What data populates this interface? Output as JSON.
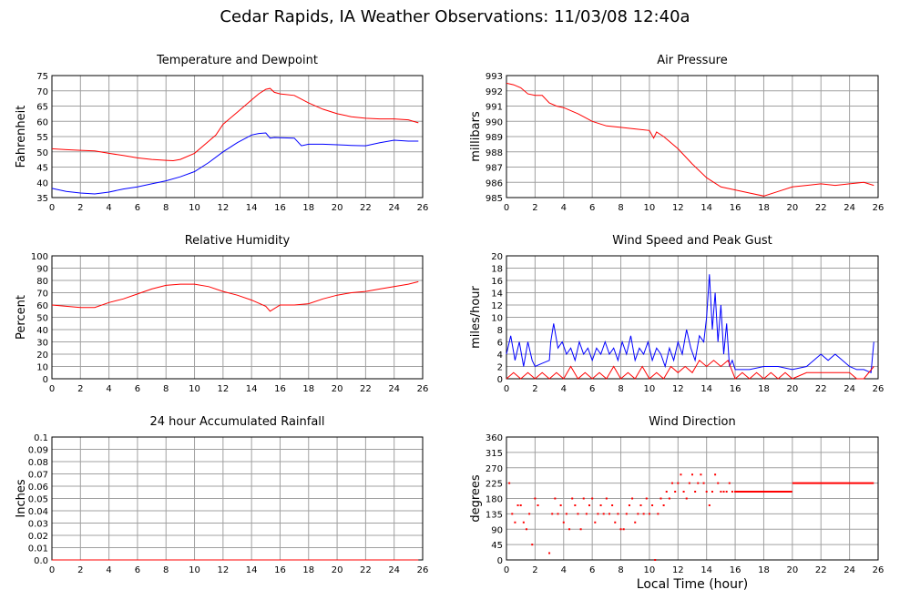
{
  "title": "Cedar Rapids, IA Weather Observations: 11/03/08 12:40a",
  "x_axis_label": "Local Time (hour)",
  "colors": {
    "red": "#ff0000",
    "blue": "#0000ff",
    "grid": "#a0a0a0"
  },
  "chart_data": [
    {
      "type": "line",
      "title": "Temperature and Dewpoint",
      "ylabel": "Fahrenheit",
      "xlim": [
        0,
        26
      ],
      "ylim": [
        35,
        75
      ],
      "xticks": [
        0,
        2,
        4,
        6,
        8,
        10,
        12,
        14,
        16,
        18,
        20,
        22,
        24,
        26
      ],
      "yticks": [
        35,
        40,
        45,
        50,
        55,
        60,
        65,
        70,
        75
      ],
      "series": [
        {
          "color": "#ff0000",
          "x": [
            0,
            1,
            2,
            3,
            4,
            5,
            6,
            7,
            8,
            8.5,
            9,
            10,
            11,
            11.5,
            12,
            13,
            14,
            14.5,
            15,
            15.3,
            15.6,
            16,
            17,
            18,
            19,
            20,
            21,
            22,
            23,
            24,
            25,
            25.7
          ],
          "y": [
            51,
            50.7,
            50.5,
            50.3,
            49.5,
            48.8,
            48,
            47.5,
            47.2,
            47.1,
            47.5,
            49.5,
            53.5,
            55.5,
            59,
            63,
            67,
            69,
            70.5,
            70.8,
            69.5,
            69,
            68.5,
            66,
            64,
            62.5,
            61.5,
            61,
            60.8,
            60.8,
            60.5,
            59.5
          ]
        },
        {
          "color": "#0000ff",
          "x": [
            0,
            1,
            2,
            3,
            4,
            5,
            6,
            7,
            8,
            9,
            10,
            11,
            12,
            13,
            14,
            14.5,
            15,
            15.3,
            15.6,
            16,
            17,
            17.5,
            18,
            19,
            20,
            21,
            22,
            23,
            24,
            25,
            25.7
          ],
          "y": [
            38,
            37,
            36.5,
            36.2,
            36.8,
            37.8,
            38.5,
            39.5,
            40.5,
            41.8,
            43.5,
            46.5,
            50,
            53,
            55.5,
            56,
            56.2,
            54.5,
            54.7,
            54.6,
            54.5,
            52,
            52.5,
            52.5,
            52.3,
            52.1,
            52,
            53,
            53.8,
            53.5,
            53.5
          ]
        }
      ]
    },
    {
      "type": "line",
      "title": "Air Pressure",
      "ylabel": "millibars",
      "xlim": [
        0,
        26
      ],
      "ylim": [
        985,
        993
      ],
      "xticks": [
        0,
        2,
        4,
        6,
        8,
        10,
        12,
        14,
        16,
        18,
        20,
        22,
        24,
        26
      ],
      "yticks": [
        985,
        986,
        987,
        988,
        989,
        990,
        991,
        992,
        993
      ],
      "series": [
        {
          "color": "#ff0000",
          "x": [
            0,
            0.5,
            1,
            1.5,
            2,
            2.5,
            3,
            3.5,
            4,
            5,
            6,
            7,
            8,
            9,
            10,
            10.3,
            10.5,
            11,
            12,
            13,
            14,
            15,
            16,
            17,
            18,
            19,
            20,
            21,
            22,
            23,
            24,
            25,
            25.7
          ],
          "y": [
            992.5,
            992.4,
            992.2,
            991.8,
            991.7,
            991.7,
            991.2,
            991.0,
            990.9,
            990.5,
            990.0,
            989.7,
            989.6,
            989.5,
            989.4,
            988.9,
            989.3,
            989.0,
            988.2,
            987.2,
            986.3,
            985.7,
            985.5,
            985.3,
            985.1,
            985.4,
            985.7,
            985.8,
            985.9,
            985.8,
            985.9,
            986.0,
            985.8
          ]
        }
      ]
    },
    {
      "type": "line",
      "title": "Relative Humidity",
      "ylabel": "Percent",
      "xlim": [
        0,
        26
      ],
      "ylim": [
        0,
        100
      ],
      "xticks": [
        0,
        2,
        4,
        6,
        8,
        10,
        12,
        14,
        16,
        18,
        20,
        22,
        24,
        26
      ],
      "yticks": [
        0,
        10,
        20,
        30,
        40,
        50,
        60,
        70,
        80,
        90,
        100
      ],
      "series": [
        {
          "color": "#ff0000",
          "x": [
            0,
            1,
            2,
            3,
            4,
            5,
            6,
            7,
            8,
            9,
            10,
            11,
            12,
            13,
            14,
            15,
            15.3,
            16,
            17,
            18,
            19,
            20,
            21,
            22,
            23,
            24,
            25,
            25.7
          ],
          "y": [
            60,
            59,
            58,
            58,
            62,
            65,
            69,
            73,
            76,
            77,
            77,
            75,
            71,
            68,
            64,
            59,
            55,
            60,
            60,
            61,
            65,
            68,
            70,
            71,
            73,
            75,
            77,
            79
          ]
        }
      ]
    },
    {
      "type": "line",
      "title": "Wind Speed and Peak Gust",
      "ylabel": "miles/hour",
      "xlim": [
        0,
        26
      ],
      "ylim": [
        0,
        20
      ],
      "xticks": [
        0,
        2,
        4,
        6,
        8,
        10,
        12,
        14,
        16,
        18,
        20,
        22,
        24,
        26
      ],
      "yticks": [
        0,
        2,
        4,
        6,
        8,
        10,
        12,
        14,
        16,
        18,
        20
      ],
      "series": [
        {
          "color": "#0000ff",
          "x": [
            0,
            0.3,
            0.6,
            0.9,
            1.2,
            1.5,
            1.8,
            2,
            2.5,
            3,
            3.1,
            3.3,
            3.6,
            3.9,
            4.2,
            4.5,
            4.8,
            5.1,
            5.4,
            5.7,
            6,
            6.3,
            6.6,
            6.9,
            7.2,
            7.5,
            7.8,
            8.1,
            8.4,
            8.7,
            9,
            9.3,
            9.6,
            9.9,
            10.2,
            10.5,
            10.8,
            11.1,
            11.4,
            11.7,
            12,
            12.3,
            12.6,
            12.9,
            13.2,
            13.5,
            13.8,
            14,
            14.2,
            14.4,
            14.6,
            14.8,
            15,
            15.2,
            15.4,
            15.6,
            15.8,
            16,
            17,
            18,
            19,
            20,
            21,
            21.5,
            22,
            22.5,
            23,
            23.5,
            24,
            24.5,
            25,
            25.5,
            25.7
          ],
          "y": [
            4,
            7,
            3,
            6,
            2,
            6,
            3,
            2,
            2.5,
            3,
            6,
            9,
            5,
            6,
            4,
            5,
            3,
            6,
            4,
            5,
            3,
            5,
            4,
            6,
            4,
            5,
            3,
            6,
            4,
            7,
            3,
            5,
            4,
            6,
            3,
            5,
            4,
            2,
            5,
            3,
            6,
            4,
            8,
            5,
            3,
            7,
            6,
            10,
            17,
            8,
            14,
            6,
            12,
            4,
            9,
            2,
            3,
            1.5,
            1.5,
            2,
            2,
            1.5,
            2,
            3,
            4,
            3,
            4,
            3,
            2,
            1.5,
            1.5,
            1,
            6
          ]
        },
        {
          "color": "#ff0000",
          "x": [
            0,
            0.5,
            1,
            1.5,
            2,
            2.5,
            3,
            3.5,
            4,
            4.5,
            5,
            5.5,
            6,
            6.5,
            7,
            7.5,
            8,
            8.5,
            9,
            9.5,
            10,
            10.5,
            11,
            11.5,
            12,
            12.5,
            13,
            13.5,
            14,
            14.5,
            15,
            15.5,
            16,
            16.5,
            17,
            17.5,
            18,
            18.5,
            19,
            19.5,
            20,
            21,
            22,
            23,
            24,
            24.5,
            25,
            25.7
          ],
          "y": [
            0,
            1,
            0,
            1,
            0,
            1,
            0,
            1,
            0,
            2,
            0,
            1,
            0,
            1,
            0,
            2,
            0,
            1,
            0,
            2,
            0,
            1,
            0,
            2,
            1,
            2,
            1,
            3,
            2,
            3,
            2,
            3,
            0,
            1,
            0,
            1,
            0,
            1,
            0,
            1,
            0,
            1,
            1,
            1,
            1,
            0,
            0,
            2
          ]
        }
      ]
    },
    {
      "type": "line",
      "title": "24 hour Accumulated Rainfall",
      "ylabel": "Inches",
      "xlim": [
        0,
        26
      ],
      "ylim": [
        0,
        0.1
      ],
      "xticks": [
        0,
        2,
        4,
        6,
        8,
        10,
        12,
        14,
        16,
        18,
        20,
        22,
        24,
        26
      ],
      "yticks": [
        "0.0",
        "0.01",
        "0.02",
        "0.03",
        "0.04",
        "0.05",
        "0.06",
        "0.07",
        "0.08",
        "0.09",
        "0.1"
      ],
      "series": [
        {
          "color": "#ff0000",
          "x": [
            0,
            25.7
          ],
          "y": [
            0,
            0
          ]
        }
      ]
    },
    {
      "type": "scatter",
      "title": "Wind Direction",
      "ylabel": "degrees",
      "xlim": [
        0,
        26
      ],
      "ylim": [
        0,
        360
      ],
      "xticks": [
        0,
        2,
        4,
        6,
        8,
        10,
        12,
        14,
        16,
        18,
        20,
        22,
        24,
        26
      ],
      "yticks": [
        0,
        45,
        90,
        135,
        180,
        225,
        270,
        315,
        360
      ],
      "series": [
        {
          "color": "#ff0000",
          "x": [
            0.2,
            0.4,
            0.6,
            0.8,
            1,
            1.2,
            1.4,
            1.6,
            1.8,
            2,
            2.2,
            3,
            3.2,
            3.4,
            3.6,
            3.8,
            4,
            4.2,
            4.4,
            4.6,
            4.8,
            5,
            5.2,
            5.4,
            5.6,
            5.8,
            6,
            6.2,
            6.4,
            6.6,
            6.8,
            7,
            7.2,
            7.4,
            7.6,
            7.8,
            8,
            8.2,
            8.4,
            8.6,
            8.8,
            9,
            9.2,
            9.4,
            9.6,
            9.8,
            10,
            10.2,
            10.4,
            10.6,
            10.8,
            11,
            11.2,
            11.4,
            11.6,
            11.8,
            12,
            12.2,
            12.4,
            12.6,
            12.8,
            13,
            13.2,
            13.4,
            13.6,
            13.8,
            14,
            14.2,
            14.4,
            14.6,
            14.8,
            15,
            15.2,
            15.4,
            15.6,
            15.8,
            16
          ],
          "y": [
            225,
            135,
            110,
            160,
            160,
            110,
            90,
            135,
            45,
            180,
            160,
            20,
            135,
            180,
            135,
            160,
            110,
            135,
            90,
            180,
            160,
            135,
            90,
            180,
            135,
            160,
            180,
            110,
            135,
            160,
            135,
            180,
            135,
            160,
            110,
            135,
            90,
            90,
            135,
            160,
            180,
            110,
            135,
            160,
            135,
            180,
            135,
            160,
            0,
            135,
            180,
            160,
            200,
            180,
            225,
            200,
            225,
            250,
            200,
            180,
            225,
            250,
            200,
            225,
            250,
            225,
            200,
            160,
            200,
            250,
            225,
            200,
            200,
            200,
            225,
            200,
            200
          ]
        },
        {
          "color": "#ff0000",
          "x": [
            16,
            20
          ],
          "y": [
            200,
            200
          ],
          "line": true
        },
        {
          "color": "#ff0000",
          "x": [
            20,
            25.7
          ],
          "y": [
            225,
            225
          ],
          "line": true
        }
      ]
    }
  ]
}
